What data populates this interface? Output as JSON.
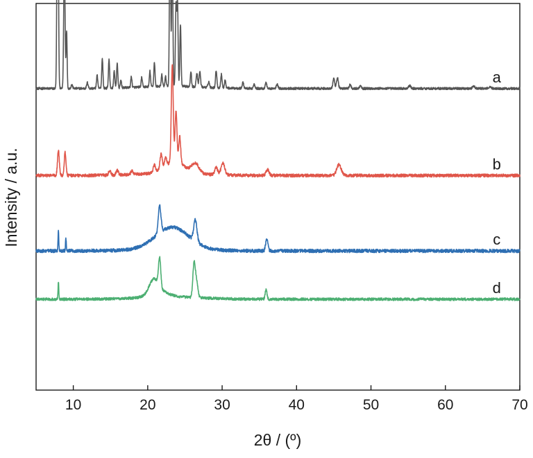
{
  "chart_data": {
    "type": "line",
    "xlabel": "2θ / (º)",
    "ylabel": "Intensity / a.u.",
    "xlim": [
      5,
      70
    ],
    "x_ticks": [
      "10",
      "20",
      "30",
      "40",
      "50",
      "60",
      "70"
    ],
    "y_ticks": [],
    "y_units": "arbitrary, stacked with vertical offsets",
    "grid": false,
    "legend": "none",
    "series": [
      {
        "name": "a",
        "color": "#555555",
        "baseline": 0.78,
        "noise": 0.003,
        "peaks": [
          {
            "x": 7.9,
            "h": 0.72,
            "w": 0.09
          },
          {
            "x": 8.8,
            "h": 0.34,
            "w": 0.09
          },
          {
            "x": 9.1,
            "h": 0.15,
            "w": 0.07
          },
          {
            "x": 9.8,
            "h": 0.01,
            "w": 0.1
          },
          {
            "x": 11.9,
            "h": 0.015,
            "w": 0.1
          },
          {
            "x": 13.2,
            "h": 0.035,
            "w": 0.08
          },
          {
            "x": 13.9,
            "h": 0.078,
            "w": 0.08
          },
          {
            "x": 14.8,
            "h": 0.075,
            "w": 0.08
          },
          {
            "x": 15.5,
            "h": 0.045,
            "w": 0.08
          },
          {
            "x": 15.9,
            "h": 0.065,
            "w": 0.08
          },
          {
            "x": 16.4,
            "h": 0.02,
            "w": 0.08
          },
          {
            "x": 17.8,
            "h": 0.028,
            "w": 0.08
          },
          {
            "x": 19.2,
            "h": 0.025,
            "w": 0.08
          },
          {
            "x": 20.3,
            "h": 0.04,
            "w": 0.08
          },
          {
            "x": 20.9,
            "h": 0.063,
            "w": 0.08
          },
          {
            "x": 21.9,
            "h": 0.03,
            "w": 0.08
          },
          {
            "x": 22.4,
            "h": 0.025,
            "w": 0.08
          },
          {
            "x": 23.0,
            "h": 0.47,
            "w": 0.08
          },
          {
            "x": 23.3,
            "h": 0.36,
            "w": 0.08
          },
          {
            "x": 23.8,
            "h": 0.21,
            "w": 0.08
          },
          {
            "x": 24.0,
            "h": 0.22,
            "w": 0.08
          },
          {
            "x": 24.4,
            "h": 0.16,
            "w": 0.08
          },
          {
            "x": 25.8,
            "h": 0.04,
            "w": 0.08
          },
          {
            "x": 26.6,
            "h": 0.035,
            "w": 0.1
          },
          {
            "x": 27.0,
            "h": 0.04,
            "w": 0.1
          },
          {
            "x": 28.2,
            "h": 0.015,
            "w": 0.1
          },
          {
            "x": 29.2,
            "h": 0.045,
            "w": 0.09
          },
          {
            "x": 29.9,
            "h": 0.035,
            "w": 0.09
          },
          {
            "x": 30.4,
            "h": 0.02,
            "w": 0.09
          },
          {
            "x": 32.8,
            "h": 0.015,
            "w": 0.1
          },
          {
            "x": 34.3,
            "h": 0.01,
            "w": 0.1
          },
          {
            "x": 35.9,
            "h": 0.015,
            "w": 0.1
          },
          {
            "x": 37.4,
            "h": 0.012,
            "w": 0.1
          },
          {
            "x": 45.0,
            "h": 0.025,
            "w": 0.12
          },
          {
            "x": 45.5,
            "h": 0.028,
            "w": 0.12
          },
          {
            "x": 47.2,
            "h": 0.01,
            "w": 0.12
          },
          {
            "x": 48.6,
            "h": 0.008,
            "w": 0.12
          },
          {
            "x": 55.2,
            "h": 0.007,
            "w": 0.15
          },
          {
            "x": 63.8,
            "h": 0.006,
            "w": 0.15
          },
          {
            "x": 66.0,
            "h": 0.005,
            "w": 0.15
          }
        ]
      },
      {
        "name": "b",
        "color": "#e0564a",
        "baseline": 0.555,
        "noise": 0.004,
        "peaks": [
          {
            "x": 8.0,
            "h": 0.065,
            "w": 0.12
          },
          {
            "x": 8.9,
            "h": 0.06,
            "w": 0.12
          },
          {
            "x": 14.9,
            "h": 0.012,
            "w": 0.15
          },
          {
            "x": 15.9,
            "h": 0.012,
            "w": 0.15
          },
          {
            "x": 17.9,
            "h": 0.01,
            "w": 0.15
          },
          {
            "x": 20.9,
            "h": 0.018,
            "w": 0.15
          },
          {
            "x": 21.8,
            "h": 0.038,
            "w": 0.15
          },
          {
            "x": 22.4,
            "h": 0.02,
            "w": 0.15
          },
          {
            "x": 23.3,
            "h": 0.25,
            "w": 0.13
          },
          {
            "x": 23.8,
            "h": 0.13,
            "w": 0.13
          },
          {
            "x": 24.3,
            "h": 0.07,
            "w": 0.13
          },
          {
            "x": 23.6,
            "h": 0.03,
            "w": 1.3
          },
          {
            "x": 26.4,
            "h": 0.025,
            "w": 0.5
          },
          {
            "x": 29.2,
            "h": 0.018,
            "w": 0.2
          },
          {
            "x": 30.1,
            "h": 0.03,
            "w": 0.25
          },
          {
            "x": 36.1,
            "h": 0.015,
            "w": 0.2
          },
          {
            "x": 45.7,
            "h": 0.028,
            "w": 0.3
          }
        ]
      },
      {
        "name": "c",
        "color": "#2e6fb3",
        "baseline": 0.36,
        "noise": 0.0045,
        "peaks": [
          {
            "x": 8.0,
            "h": 0.055,
            "w": 0.05
          },
          {
            "x": 9.0,
            "h": 0.035,
            "w": 0.05
          },
          {
            "x": 21.6,
            "h": 0.07,
            "w": 0.18
          },
          {
            "x": 23.3,
            "h": 0.055,
            "w": 2.2
          },
          {
            "x": 26.4,
            "h": 0.055,
            "w": 0.22
          },
          {
            "x": 36.0,
            "h": 0.03,
            "w": 0.15
          }
        ]
      },
      {
        "name": "d",
        "color": "#4caf72",
        "baseline": 0.235,
        "noise": 0.0035,
        "peaks": [
          {
            "x": 8.0,
            "h": 0.045,
            "w": 0.05
          },
          {
            "x": 21.6,
            "h": 0.075,
            "w": 0.15
          },
          {
            "x": 20.8,
            "h": 0.035,
            "w": 0.6
          },
          {
            "x": 21.5,
            "h": 0.015,
            "w": 1.2
          },
          {
            "x": 26.2,
            "h": 0.075,
            "w": 0.15
          },
          {
            "x": 26.5,
            "h": 0.05,
            "w": 0.2
          },
          {
            "x": 35.9,
            "h": 0.025,
            "w": 0.12
          }
        ]
      }
    ]
  }
}
